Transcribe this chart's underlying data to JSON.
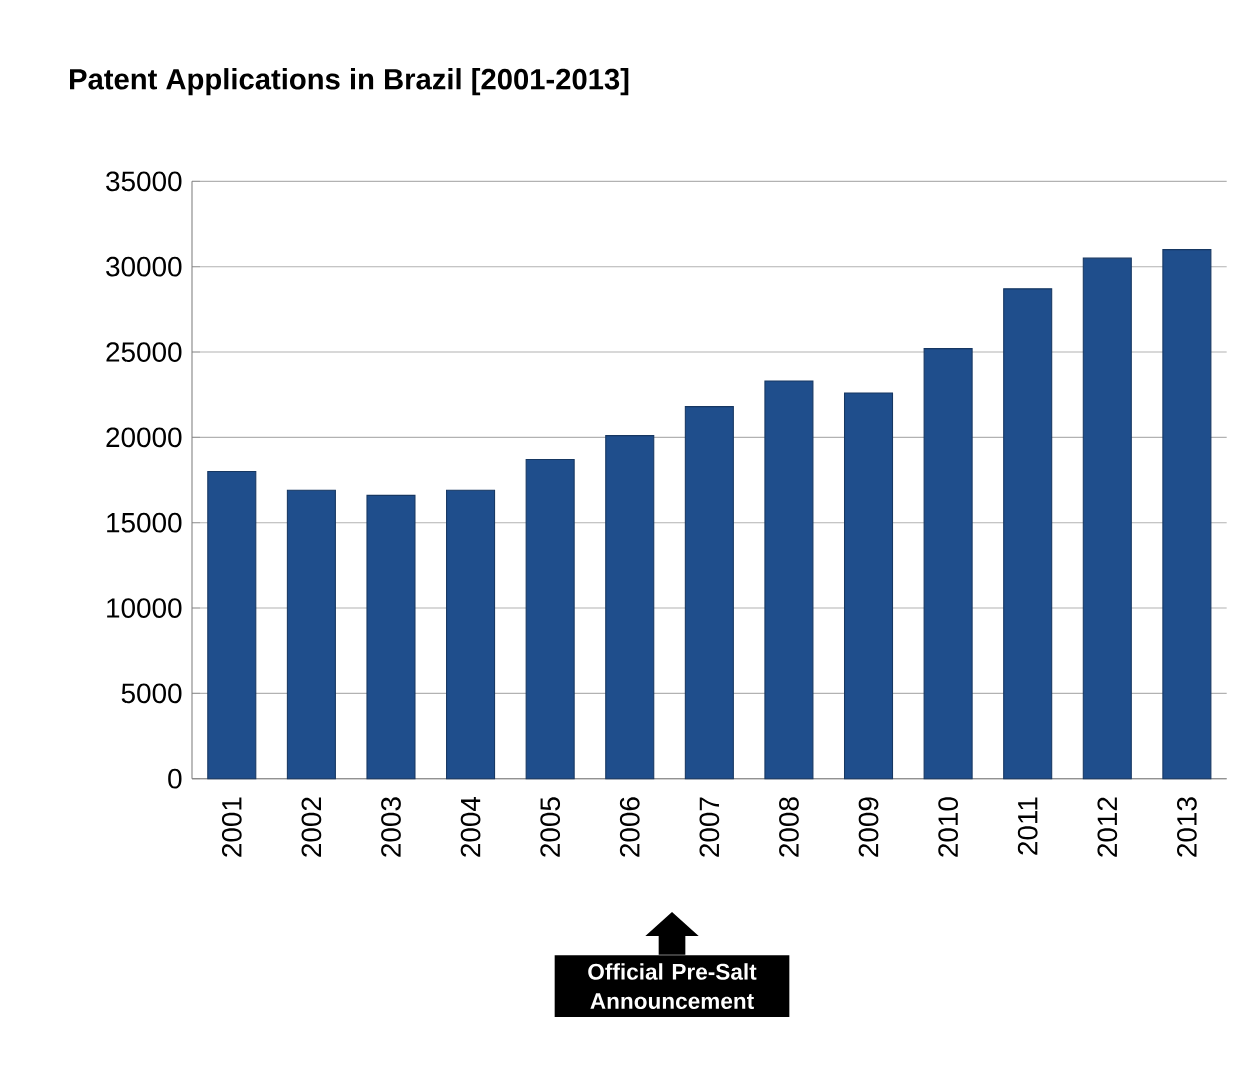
{
  "chart_data": {
    "type": "bar",
    "title": "Patent Applications in Brazil [2001-2013]",
    "categories": [
      "2001",
      "2002",
      "2003",
      "2004",
      "2005",
      "2006",
      "2007",
      "2008",
      "2009",
      "2010",
      "2011",
      "2012",
      "2013"
    ],
    "values": [
      18000,
      16900,
      16600,
      16900,
      18700,
      20100,
      21800,
      23300,
      22600,
      25200,
      28700,
      30500,
      31000
    ],
    "color": "#1f4e8c",
    "ylim": [
      0,
      35000
    ],
    "yticks": [
      0,
      5000,
      10000,
      15000,
      20000,
      25000,
      30000,
      35000
    ],
    "grid": "y",
    "annotations": [
      "Official Pre-Salt Announcement"
    ]
  }
}
